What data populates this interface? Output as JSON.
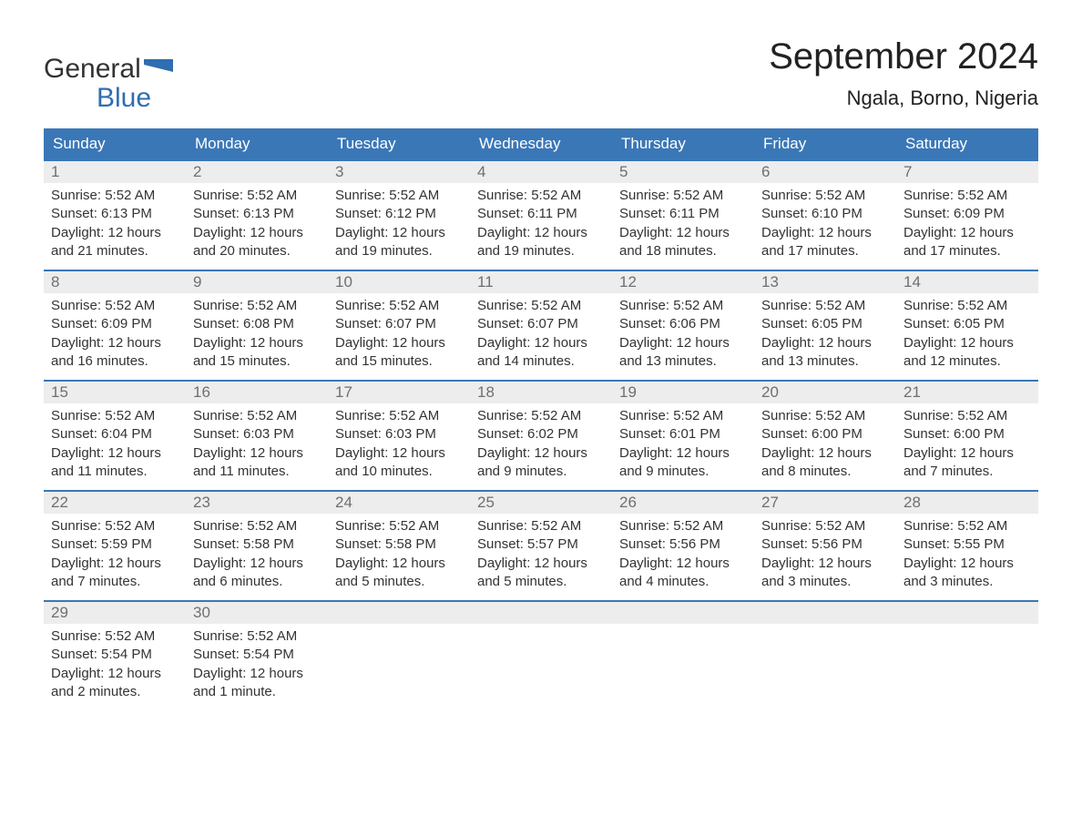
{
  "logo": {
    "text_top": "General",
    "text_bottom": "Blue",
    "flag_color": "#2f6eb0"
  },
  "title": "September 2024",
  "location": "Ngala, Borno, Nigeria",
  "colors": {
    "header_bg": "#3a77b7",
    "header_text": "#ffffff",
    "week_border": "#3a77b7",
    "daynum_bg": "#ededed",
    "daynum_text": "#6f6f6f",
    "body_text": "#333333",
    "background": "#ffffff",
    "logo_blue": "#2f6eb0"
  },
  "typography": {
    "title_fontsize": 40,
    "location_fontsize": 22,
    "weekday_fontsize": 17,
    "daynum_fontsize": 17,
    "body_fontsize": 15,
    "logo_fontsize": 30
  },
  "weekdays": [
    "Sunday",
    "Monday",
    "Tuesday",
    "Wednesday",
    "Thursday",
    "Friday",
    "Saturday"
  ],
  "weeks": [
    [
      {
        "day": "1",
        "sunrise": "Sunrise: 5:52 AM",
        "sunset": "Sunset: 6:13 PM",
        "daylight": "Daylight: 12 hours and 21 minutes."
      },
      {
        "day": "2",
        "sunrise": "Sunrise: 5:52 AM",
        "sunset": "Sunset: 6:13 PM",
        "daylight": "Daylight: 12 hours and 20 minutes."
      },
      {
        "day": "3",
        "sunrise": "Sunrise: 5:52 AM",
        "sunset": "Sunset: 6:12 PM",
        "daylight": "Daylight: 12 hours and 19 minutes."
      },
      {
        "day": "4",
        "sunrise": "Sunrise: 5:52 AM",
        "sunset": "Sunset: 6:11 PM",
        "daylight": "Daylight: 12 hours and 19 minutes."
      },
      {
        "day": "5",
        "sunrise": "Sunrise: 5:52 AM",
        "sunset": "Sunset: 6:11 PM",
        "daylight": "Daylight: 12 hours and 18 minutes."
      },
      {
        "day": "6",
        "sunrise": "Sunrise: 5:52 AM",
        "sunset": "Sunset: 6:10 PM",
        "daylight": "Daylight: 12 hours and 17 minutes."
      },
      {
        "day": "7",
        "sunrise": "Sunrise: 5:52 AM",
        "sunset": "Sunset: 6:09 PM",
        "daylight": "Daylight: 12 hours and 17 minutes."
      }
    ],
    [
      {
        "day": "8",
        "sunrise": "Sunrise: 5:52 AM",
        "sunset": "Sunset: 6:09 PM",
        "daylight": "Daylight: 12 hours and 16 minutes."
      },
      {
        "day": "9",
        "sunrise": "Sunrise: 5:52 AM",
        "sunset": "Sunset: 6:08 PM",
        "daylight": "Daylight: 12 hours and 15 minutes."
      },
      {
        "day": "10",
        "sunrise": "Sunrise: 5:52 AM",
        "sunset": "Sunset: 6:07 PM",
        "daylight": "Daylight: 12 hours and 15 minutes."
      },
      {
        "day": "11",
        "sunrise": "Sunrise: 5:52 AM",
        "sunset": "Sunset: 6:07 PM",
        "daylight": "Daylight: 12 hours and 14 minutes."
      },
      {
        "day": "12",
        "sunrise": "Sunrise: 5:52 AM",
        "sunset": "Sunset: 6:06 PM",
        "daylight": "Daylight: 12 hours and 13 minutes."
      },
      {
        "day": "13",
        "sunrise": "Sunrise: 5:52 AM",
        "sunset": "Sunset: 6:05 PM",
        "daylight": "Daylight: 12 hours and 13 minutes."
      },
      {
        "day": "14",
        "sunrise": "Sunrise: 5:52 AM",
        "sunset": "Sunset: 6:05 PM",
        "daylight": "Daylight: 12 hours and 12 minutes."
      }
    ],
    [
      {
        "day": "15",
        "sunrise": "Sunrise: 5:52 AM",
        "sunset": "Sunset: 6:04 PM",
        "daylight": "Daylight: 12 hours and 11 minutes."
      },
      {
        "day": "16",
        "sunrise": "Sunrise: 5:52 AM",
        "sunset": "Sunset: 6:03 PM",
        "daylight": "Daylight: 12 hours and 11 minutes."
      },
      {
        "day": "17",
        "sunrise": "Sunrise: 5:52 AM",
        "sunset": "Sunset: 6:03 PM",
        "daylight": "Daylight: 12 hours and 10 minutes."
      },
      {
        "day": "18",
        "sunrise": "Sunrise: 5:52 AM",
        "sunset": "Sunset: 6:02 PM",
        "daylight": "Daylight: 12 hours and 9 minutes."
      },
      {
        "day": "19",
        "sunrise": "Sunrise: 5:52 AM",
        "sunset": "Sunset: 6:01 PM",
        "daylight": "Daylight: 12 hours and 9 minutes."
      },
      {
        "day": "20",
        "sunrise": "Sunrise: 5:52 AM",
        "sunset": "Sunset: 6:00 PM",
        "daylight": "Daylight: 12 hours and 8 minutes."
      },
      {
        "day": "21",
        "sunrise": "Sunrise: 5:52 AM",
        "sunset": "Sunset: 6:00 PM",
        "daylight": "Daylight: 12 hours and 7 minutes."
      }
    ],
    [
      {
        "day": "22",
        "sunrise": "Sunrise: 5:52 AM",
        "sunset": "Sunset: 5:59 PM",
        "daylight": "Daylight: 12 hours and 7 minutes."
      },
      {
        "day": "23",
        "sunrise": "Sunrise: 5:52 AM",
        "sunset": "Sunset: 5:58 PM",
        "daylight": "Daylight: 12 hours and 6 minutes."
      },
      {
        "day": "24",
        "sunrise": "Sunrise: 5:52 AM",
        "sunset": "Sunset: 5:58 PM",
        "daylight": "Daylight: 12 hours and 5 minutes."
      },
      {
        "day": "25",
        "sunrise": "Sunrise: 5:52 AM",
        "sunset": "Sunset: 5:57 PM",
        "daylight": "Daylight: 12 hours and 5 minutes."
      },
      {
        "day": "26",
        "sunrise": "Sunrise: 5:52 AM",
        "sunset": "Sunset: 5:56 PM",
        "daylight": "Daylight: 12 hours and 4 minutes."
      },
      {
        "day": "27",
        "sunrise": "Sunrise: 5:52 AM",
        "sunset": "Sunset: 5:56 PM",
        "daylight": "Daylight: 12 hours and 3 minutes."
      },
      {
        "day": "28",
        "sunrise": "Sunrise: 5:52 AM",
        "sunset": "Sunset: 5:55 PM",
        "daylight": "Daylight: 12 hours and 3 minutes."
      }
    ],
    [
      {
        "day": "29",
        "sunrise": "Sunrise: 5:52 AM",
        "sunset": "Sunset: 5:54 PM",
        "daylight": "Daylight: 12 hours and 2 minutes."
      },
      {
        "day": "30",
        "sunrise": "Sunrise: 5:52 AM",
        "sunset": "Sunset: 5:54 PM",
        "daylight": "Daylight: 12 hours and 1 minute."
      },
      null,
      null,
      null,
      null,
      null
    ]
  ]
}
